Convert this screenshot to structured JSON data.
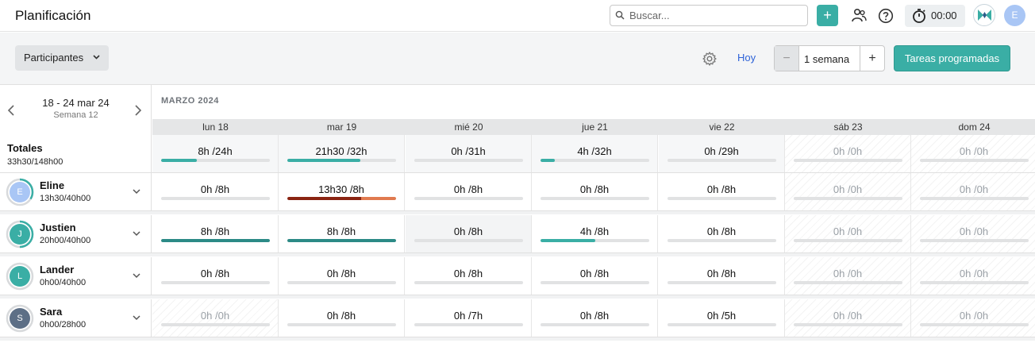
{
  "app": {
    "title": "Planificación"
  },
  "search": {
    "placeholder": "Buscar..."
  },
  "topbar": {
    "add_label": "+",
    "timer": "00:00",
    "user_initial": "E",
    "icons": [
      "people-icon",
      "help-icon",
      "stopwatch-icon",
      "brand-logo-icon"
    ]
  },
  "toolbar": {
    "participants_label": "Participantes",
    "today_label": "Hoy",
    "range_minus": "−",
    "range_value": "1 semana",
    "range_plus": "+",
    "scheduled_tasks_label": "Tareas programadas"
  },
  "week": {
    "range": "18 - 24 mar 24",
    "week_label": "Semana 12",
    "month": "MARZO 2024"
  },
  "days": [
    {
      "label": "lun 18",
      "weekend": false
    },
    {
      "label": "mar 19",
      "weekend": false
    },
    {
      "label": "mié 20",
      "weekend": false
    },
    {
      "label": "jue 21",
      "weekend": false
    },
    {
      "label": "vie 22",
      "weekend": false
    },
    {
      "label": "sáb 23",
      "weekend": true
    },
    {
      "label": "dom 24",
      "weekend": true
    }
  ],
  "totals": {
    "label": "Totales",
    "summary": "33h30/148h00",
    "cells": [
      {
        "text": "8h /24h",
        "progress": 0.33
      },
      {
        "text": "21h30 /32h",
        "progress": 0.67
      },
      {
        "text": "0h /31h",
        "progress": 0
      },
      {
        "text": "4h /32h",
        "progress": 0.13
      },
      {
        "text": "0h /29h",
        "progress": 0
      },
      {
        "text": "0h /0h",
        "progress": 0
      },
      {
        "text": "0h /0h",
        "progress": 0
      }
    ]
  },
  "people": [
    {
      "name": "Eline",
      "hours": "13h30/40h00",
      "initial": "E",
      "avatar_color": "#a9c6f5",
      "ring_progress": 0.34,
      "cells": [
        {
          "text": "0h /8h",
          "progress": 0
        },
        {
          "text": "13h30 /8h",
          "progress": 1,
          "over": true
        },
        {
          "text": "0h /8h",
          "progress": 0
        },
        {
          "text": "0h /8h",
          "progress": 0
        },
        {
          "text": "0h /8h",
          "progress": 0
        },
        {
          "text": "0h /0h",
          "progress": 0
        },
        {
          "text": "0h /0h",
          "progress": 0
        }
      ]
    },
    {
      "name": "Justien",
      "hours": "20h00/40h00",
      "initial": "J",
      "avatar_color": "#3aaea5",
      "ring_progress": 0.5,
      "cells": [
        {
          "text": "8h /8h",
          "progress": 1
        },
        {
          "text": "8h /8h",
          "progress": 1
        },
        {
          "text": "0h /8h",
          "progress": 0,
          "shade": true
        },
        {
          "text": "4h /8h",
          "progress": 0.5
        },
        {
          "text": "0h /8h",
          "progress": 0
        },
        {
          "text": "0h /0h",
          "progress": 0
        },
        {
          "text": "0h /0h",
          "progress": 0
        }
      ]
    },
    {
      "name": "Lander",
      "hours": "0h00/40h00",
      "initial": "L",
      "avatar_color": "#3aaea5",
      "ring_progress": 0,
      "cells": [
        {
          "text": "0h /8h",
          "progress": 0
        },
        {
          "text": "0h /8h",
          "progress": 0
        },
        {
          "text": "0h /8h",
          "progress": 0
        },
        {
          "text": "0h /8h",
          "progress": 0
        },
        {
          "text": "0h /8h",
          "progress": 0
        },
        {
          "text": "0h /0h",
          "progress": 0
        },
        {
          "text": "0h /0h",
          "progress": 0
        }
      ]
    },
    {
      "name": "Sara",
      "hours": "0h00/28h00",
      "initial": "S",
      "avatar_color": "#5d6f86",
      "ring_progress": 0,
      "cells": [
        {
          "text": "0h /0h",
          "progress": 0,
          "off": true
        },
        {
          "text": "0h /8h",
          "progress": 0
        },
        {
          "text": "0h /7h",
          "progress": 0
        },
        {
          "text": "0h /8h",
          "progress": 0
        },
        {
          "text": "0h /5h",
          "progress": 0
        },
        {
          "text": "0h /0h",
          "progress": 0
        },
        {
          "text": "0h /0h",
          "progress": 0
        }
      ]
    }
  ],
  "colors": {
    "accent": "#3aaea5",
    "full": "#2c8a86",
    "over_start": "#8a2412",
    "over_end": "#e07a4f",
    "link": "#2e63d8"
  }
}
